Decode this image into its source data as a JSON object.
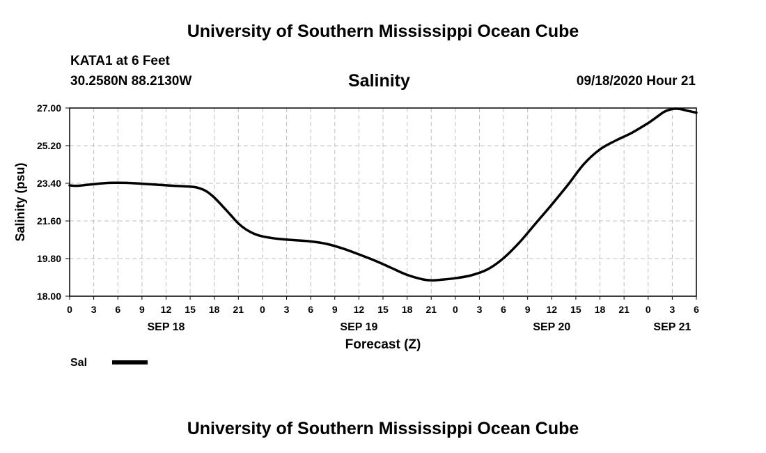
{
  "header": {
    "title": "University of Southern Mississippi Ocean Cube",
    "station": "KATA1 at 6 Feet",
    "coords": "30.2580N 88.2130W",
    "timestamp": "09/18/2020 Hour 21"
  },
  "footer": {
    "title": "University of Southern Mississippi Ocean Cube"
  },
  "chart_data": {
    "type": "line",
    "title": "Salinity",
    "xlabel": "Forecast (Z)",
    "ylabel": "Salinity (psu)",
    "ylim": [
      18.0,
      27.0
    ],
    "y_ticks": [
      "18.00",
      "19.80",
      "21.60",
      "23.40",
      "25.20",
      "27.00"
    ],
    "x_unit": "hours from 2020-09-18 00Z",
    "xlim": [
      0,
      78
    ],
    "x_tick_labels": [
      "0",
      "3",
      "6",
      "9",
      "12",
      "15",
      "18",
      "21",
      "0",
      "3",
      "6",
      "9",
      "12",
      "15",
      "18",
      "21",
      "0",
      "3",
      "6",
      "9",
      "12",
      "15",
      "18",
      "21",
      "0",
      "3",
      "6"
    ],
    "date_labels": [
      {
        "label": "SEP 18",
        "hour": 12
      },
      {
        "label": "SEP 19",
        "hour": 36
      },
      {
        "label": "SEP 20",
        "hour": 60
      },
      {
        "label": "SEP 21",
        "hour": 75
      }
    ],
    "grid": true,
    "line_color": "#000000",
    "series": [
      {
        "name": "Sal",
        "x": [
          0,
          1,
          3,
          5,
          7,
          9,
          11,
          13,
          15,
          16,
          17,
          18,
          19,
          20,
          21,
          22,
          23,
          24,
          26,
          28,
          30,
          32,
          34,
          36,
          38,
          40,
          42,
          44,
          45,
          46,
          48,
          50,
          52,
          54,
          56,
          58,
          60,
          62,
          64,
          66,
          68,
          70,
          72,
          73,
          74,
          75,
          76,
          77,
          78
        ],
        "y": [
          23.3,
          23.28,
          23.36,
          23.42,
          23.42,
          23.38,
          23.33,
          23.28,
          23.24,
          23.18,
          23.02,
          22.72,
          22.32,
          21.9,
          21.48,
          21.18,
          20.98,
          20.86,
          20.74,
          20.68,
          20.62,
          20.5,
          20.28,
          20.0,
          19.7,
          19.36,
          19.02,
          18.8,
          18.76,
          18.78,
          18.86,
          19.0,
          19.28,
          19.82,
          20.58,
          21.48,
          22.38,
          23.32,
          24.32,
          25.02,
          25.45,
          25.82,
          26.28,
          26.55,
          26.82,
          26.95,
          26.95,
          26.86,
          26.78
        ]
      }
    ],
    "legend": [
      {
        "label": "Sal"
      }
    ]
  }
}
